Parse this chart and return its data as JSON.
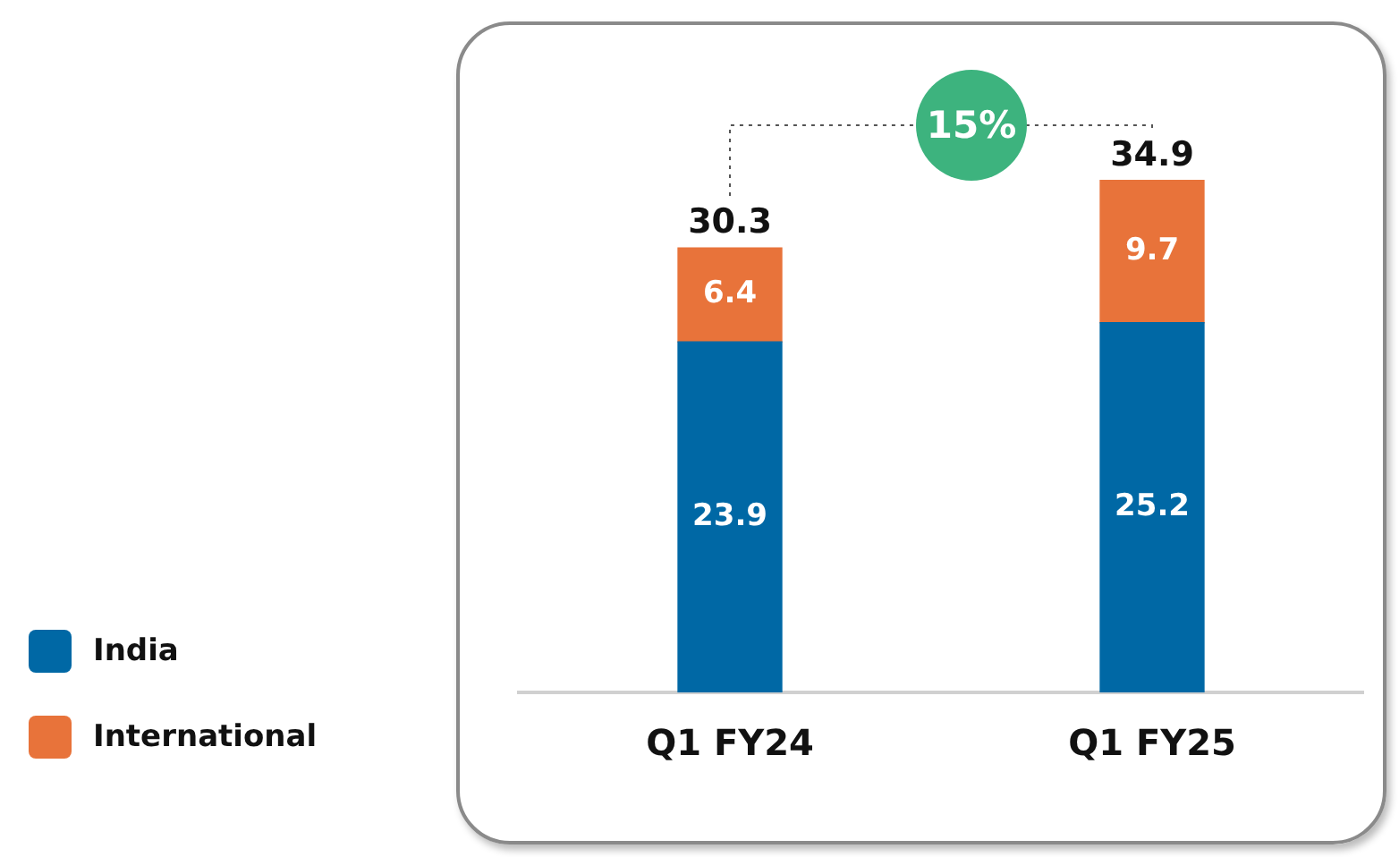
{
  "chart_data": {
    "type": "bar",
    "stacked": true,
    "categories": [
      "Q1 FY24",
      "Q1 FY25"
    ],
    "series": [
      {
        "name": "India",
        "color": "#0068a5",
        "values": [
          23.9,
          25.2
        ]
      },
      {
        "name": "International",
        "color": "#e8733a",
        "values": [
          6.4,
          9.7
        ]
      }
    ],
    "totals": [
      "30.3",
      "34.9"
    ],
    "data_labels": true,
    "legend": "left",
    "grid": false,
    "annotations": [
      "15%"
    ]
  }
}
